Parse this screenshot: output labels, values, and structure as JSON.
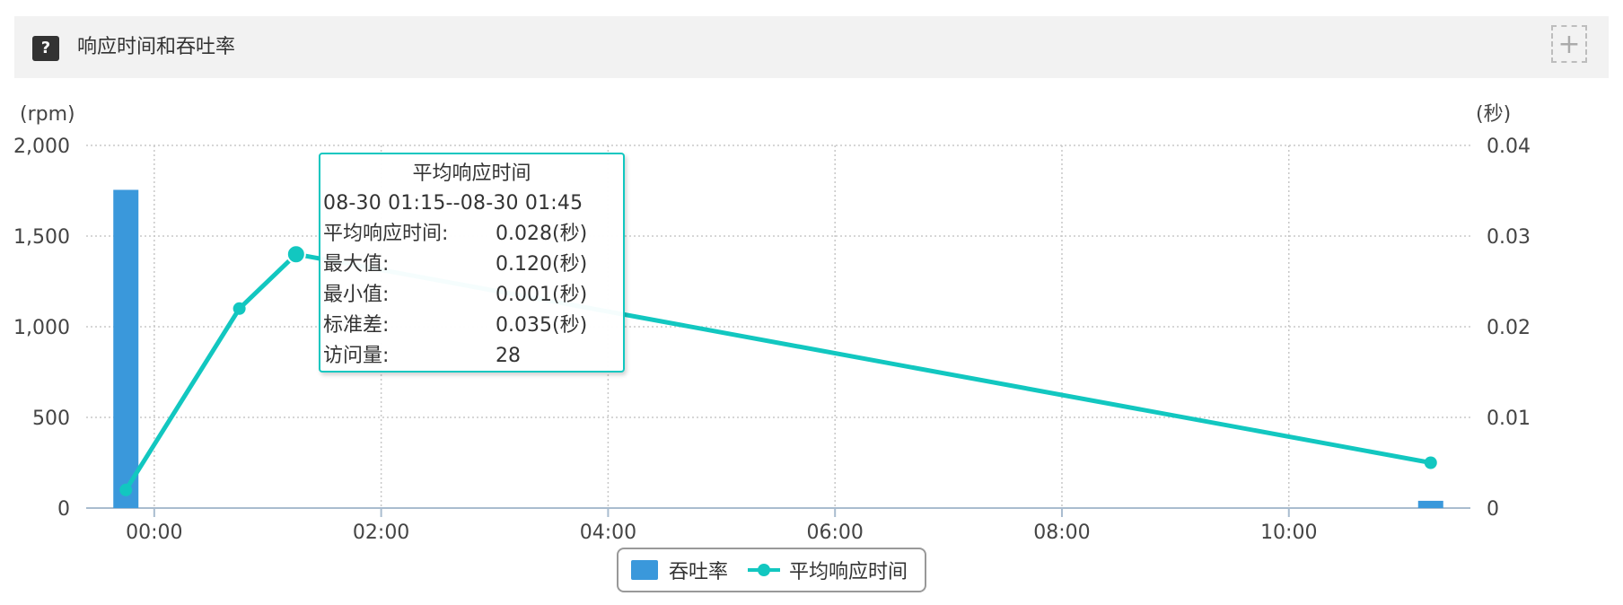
{
  "panel": {
    "help_icon": "?",
    "title": "响应时间和吞吐率",
    "add_icon": "+"
  },
  "colors": {
    "bar": "#3a98db",
    "line": "#12c7c0",
    "grid": "#c8c8c8",
    "axis": "#a9bccf"
  },
  "chart_data": {
    "type": "bar+line",
    "left_axis": {
      "label": "(rpm)",
      "ticks": [
        "2,000",
        "1,500",
        "1,000",
        "500",
        "0"
      ],
      "range": [
        0,
        2000
      ]
    },
    "right_axis": {
      "label": "(秒)",
      "ticks": [
        "0.04",
        "0.03",
        "0.02",
        "0.01",
        "0"
      ],
      "range": [
        0,
        0.04
      ]
    },
    "x_axis": {
      "ticks": [
        "00:00",
        "02:00",
        "04:00",
        "06:00",
        "08:00",
        "10:00"
      ],
      "range_hours": [
        -0.6,
        11.6
      ]
    },
    "grid": true,
    "legend_position": "bottom-center",
    "series": [
      {
        "name": "吞吐率",
        "kind": "bar",
        "axis": "left",
        "points": [
          {
            "x": -0.25,
            "y": 1755
          },
          {
            "x": 11.25,
            "y": 40
          }
        ]
      },
      {
        "name": "平均响应时间",
        "kind": "line",
        "axis": "right",
        "points": [
          {
            "x": -0.25,
            "y": 0.002
          },
          {
            "x": 0.75,
            "y": 0.022
          },
          {
            "x": 1.25,
            "y": 0.028
          },
          {
            "x": 11.25,
            "y": 0.005
          }
        ],
        "highlighted_index": 2
      }
    ]
  },
  "tooltip": {
    "title": "平均响应时间",
    "period": "08-30 01:15--08-30 01:45",
    "rows": [
      {
        "label": "平均响应时间:",
        "value": "0.028(秒)"
      },
      {
        "label": "最大值:",
        "value": "0.120(秒)"
      },
      {
        "label": "最小值:",
        "value": "0.001(秒)"
      },
      {
        "label": "标准差:",
        "value": "0.035(秒)"
      },
      {
        "label": "访问量:",
        "value": "28"
      }
    ]
  },
  "legend": [
    {
      "label": "吞吐率"
    },
    {
      "label": "平均响应时间"
    }
  ]
}
